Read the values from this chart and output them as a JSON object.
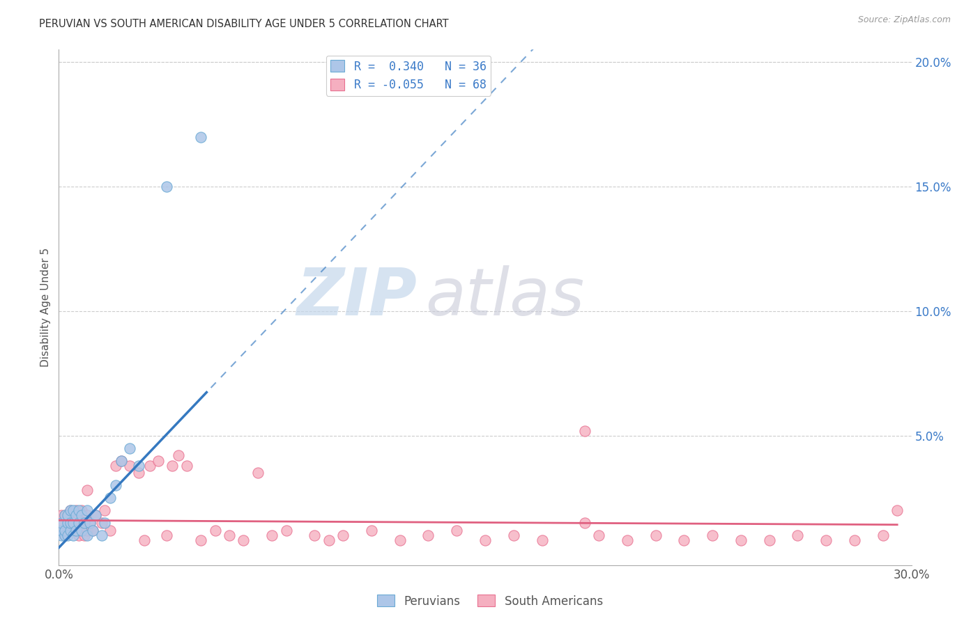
{
  "title": "PERUVIAN VS SOUTH AMERICAN DISABILITY AGE UNDER 5 CORRELATION CHART",
  "source": "Source: ZipAtlas.com",
  "ylabel": "Disability Age Under 5",
  "right_yticks": [
    "20.0%",
    "15.0%",
    "10.0%",
    "5.0%"
  ],
  "right_ytick_vals": [
    0.2,
    0.15,
    0.1,
    0.05
  ],
  "legend_text_1": "R =  0.340   N = 36",
  "legend_text_2": "R = -0.055   N = 68",
  "peruvians_color": "#adc6e8",
  "south_americans_color": "#f5afc0",
  "peruvians_edge_color": "#6aaad4",
  "south_americans_edge_color": "#e87090",
  "peruvians_line_color": "#3579c0",
  "south_americans_line_color": "#e06080",
  "xlim": [
    0.0,
    0.3
  ],
  "ylim": [
    -0.002,
    0.205
  ],
  "background_color": "#ffffff",
  "grid_color": "#cccccc",
  "peruvians_x": [
    0.001,
    0.001,
    0.001,
    0.002,
    0.002,
    0.002,
    0.003,
    0.003,
    0.003,
    0.004,
    0.004,
    0.004,
    0.005,
    0.005,
    0.005,
    0.006,
    0.006,
    0.007,
    0.007,
    0.008,
    0.008,
    0.009,
    0.01,
    0.01,
    0.011,
    0.012,
    0.013,
    0.015,
    0.016,
    0.018,
    0.02,
    0.022,
    0.025,
    0.028,
    0.038,
    0.05
  ],
  "peruvians_y": [
    0.01,
    0.012,
    0.015,
    0.01,
    0.012,
    0.018,
    0.01,
    0.015,
    0.018,
    0.012,
    0.015,
    0.02,
    0.01,
    0.015,
    0.02,
    0.012,
    0.018,
    0.015,
    0.02,
    0.012,
    0.018,
    0.015,
    0.01,
    0.02,
    0.015,
    0.012,
    0.018,
    0.01,
    0.015,
    0.025,
    0.03,
    0.04,
    0.045,
    0.038,
    0.15,
    0.17
  ],
  "south_americans_x": [
    0.001,
    0.001,
    0.002,
    0.002,
    0.003,
    0.003,
    0.004,
    0.004,
    0.005,
    0.005,
    0.006,
    0.006,
    0.007,
    0.007,
    0.008,
    0.008,
    0.009,
    0.01,
    0.01,
    0.011,
    0.012,
    0.013,
    0.015,
    0.016,
    0.018,
    0.02,
    0.022,
    0.025,
    0.028,
    0.03,
    0.032,
    0.035,
    0.038,
    0.04,
    0.042,
    0.045,
    0.05,
    0.055,
    0.06,
    0.065,
    0.07,
    0.075,
    0.08,
    0.09,
    0.095,
    0.1,
    0.11,
    0.12,
    0.13,
    0.14,
    0.15,
    0.16,
    0.17,
    0.185,
    0.19,
    0.2,
    0.21,
    0.22,
    0.23,
    0.24,
    0.25,
    0.26,
    0.27,
    0.28,
    0.29,
    0.295,
    0.01,
    0.185
  ],
  "south_americans_y": [
    0.015,
    0.018,
    0.01,
    0.018,
    0.012,
    0.018,
    0.015,
    0.02,
    0.012,
    0.018,
    0.015,
    0.02,
    0.01,
    0.018,
    0.015,
    0.02,
    0.01,
    0.012,
    0.018,
    0.015,
    0.012,
    0.018,
    0.015,
    0.02,
    0.012,
    0.038,
    0.04,
    0.038,
    0.035,
    0.008,
    0.038,
    0.04,
    0.01,
    0.038,
    0.042,
    0.038,
    0.008,
    0.012,
    0.01,
    0.008,
    0.035,
    0.01,
    0.012,
    0.01,
    0.008,
    0.01,
    0.012,
    0.008,
    0.01,
    0.012,
    0.008,
    0.01,
    0.008,
    0.052,
    0.01,
    0.008,
    0.01,
    0.008,
    0.01,
    0.008,
    0.008,
    0.01,
    0.008,
    0.008,
    0.01,
    0.02,
    0.028,
    0.015
  ]
}
